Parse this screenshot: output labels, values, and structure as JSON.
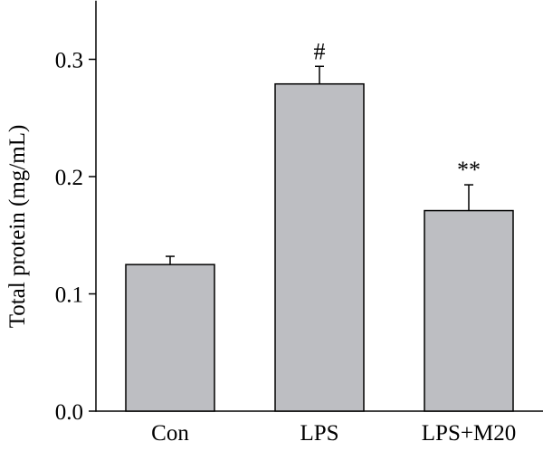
{
  "chart_data": {
    "type": "bar",
    "title": "",
    "xlabel": "",
    "ylabel": "Total protein (mg/mL)",
    "categories": [
      "Con",
      "LPS",
      "LPS+M20"
    ],
    "values": [
      0.125,
      0.279,
      0.171
    ],
    "errors": [
      0.007,
      0.015,
      0.022
    ],
    "annotations": [
      "",
      "#",
      "**"
    ],
    "ylim": [
      0,
      0.35
    ],
    "yticks": [
      0.0,
      0.1,
      0.2,
      0.3
    ],
    "ytick_labels": [
      "0.0",
      "0.1",
      "0.2",
      "0.3"
    ],
    "grid": false,
    "legend": "none",
    "colors": {
      "bar_fill": "#bdbec2",
      "bar_stroke": "#000000",
      "axis": "#000000"
    }
  }
}
